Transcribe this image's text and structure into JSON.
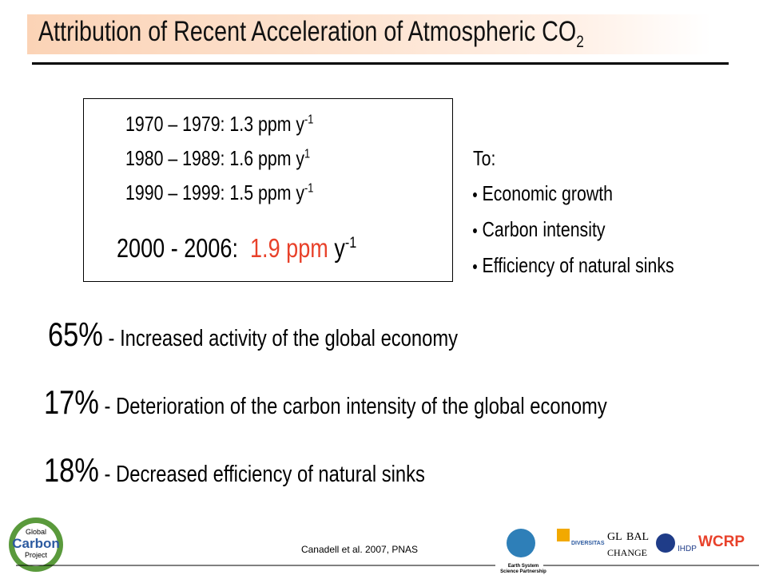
{
  "header": {
    "title": "Attribution of Recent Acceleration of Atmospheric CO",
    "title_subscript": "2"
  },
  "box": {
    "rows": [
      {
        "period": "1970 – 1979:",
        "rate": "1.3 ppm y",
        "exponent": "-1"
      },
      {
        "period": "1980 – 1989:",
        "rate": "1.6 ppm y",
        "exponent": "1"
      },
      {
        "period": "1990 – 1999:",
        "rate": "1.5 ppm y",
        "exponent": "-1"
      }
    ],
    "highlight": {
      "period": "2000 - 2006:",
      "rate": "1.9 ppm",
      "unit": "y",
      "exponent": "-1"
    }
  },
  "drivers": {
    "heading": "To:",
    "items": [
      "Economic growth",
      "Carbon intensity",
      "Efficiency of natural sinks"
    ]
  },
  "attributions": [
    {
      "percent": "65%",
      "text": "- Increased activity of the global economy"
    },
    {
      "percent": "17%",
      "text": "- Deterioration of the carbon intensity of the global economy"
    },
    {
      "percent": "18%",
      "text": "- Decreased efficiency of natural sinks"
    }
  ],
  "footer": {
    "citation": "Canadell et al. 2007, PNAS",
    "logos": [
      "Global",
      "Carbon",
      "Project",
      "Earth System",
      "Science Partnership",
      "DIVERSITAS",
      "GL",
      "BAL",
      "CHANGE",
      "IHDP",
      "WCRP"
    ]
  }
}
